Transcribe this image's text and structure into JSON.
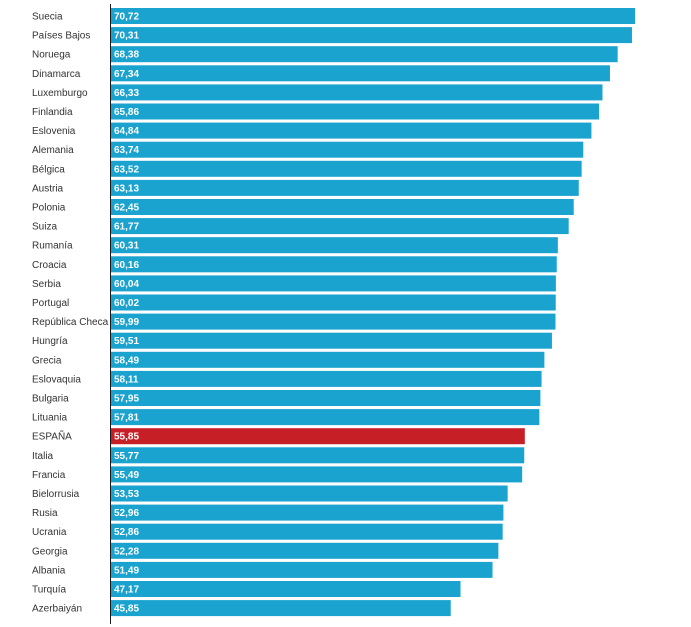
{
  "chart_data": {
    "type": "bar",
    "orientation": "horizontal",
    "categories": [
      "Suecia",
      "Países Bajos",
      "Noruega",
      "Dinamarca",
      "Luxemburgo",
      "Finlandia",
      "Eslovenia",
      "Alemania",
      "Bélgica",
      "Austria",
      "Polonia",
      "Suiza",
      "Rumanía",
      "Croacia",
      "Serbia",
      "Portugal",
      "República Checa",
      "Hungría",
      "Grecia",
      "Eslovaquia",
      "Bulgaria",
      "Lituania",
      "ESPAÑA",
      "Italia",
      "Francia",
      "Bielorrusia",
      "Rusia",
      "Ucrania",
      "Georgia",
      "Albania",
      "Turquía",
      "Azerbaiyán"
    ],
    "values": [
      70.72,
      70.31,
      68.38,
      67.34,
      66.33,
      65.86,
      64.84,
      63.74,
      63.52,
      63.13,
      62.45,
      61.77,
      60.31,
      60.16,
      60.04,
      60.02,
      59.99,
      59.51,
      58.49,
      58.11,
      57.95,
      57.81,
      55.85,
      55.77,
      55.49,
      53.53,
      52.96,
      52.86,
      52.28,
      51.49,
      47.17,
      45.85
    ],
    "value_labels": [
      "70,72",
      "70,31",
      "68,38",
      "67,34",
      "66,33",
      "65,86",
      "64,84",
      "63,74",
      "63,52",
      "63,13",
      "62,45",
      "61,77",
      "60,31",
      "60,16",
      "60,04",
      "60,02",
      "59,99",
      "59,51",
      "58,49",
      "58,11",
      "57,95",
      "57,81",
      "55,85",
      "55,77",
      "55,49",
      "53,53",
      "52,96",
      "52,86",
      "52,28",
      "51,49",
      "47,17",
      "45,85"
    ],
    "colors": {
      "default": "#1aa3cf",
      "highlight": "#c62026"
    },
    "highlight_category": "ESPAÑA",
    "xlim": [
      0,
      70.72
    ],
    "title": "",
    "xlabel": "",
    "ylabel": "",
    "grid": false,
    "legend": "none"
  }
}
